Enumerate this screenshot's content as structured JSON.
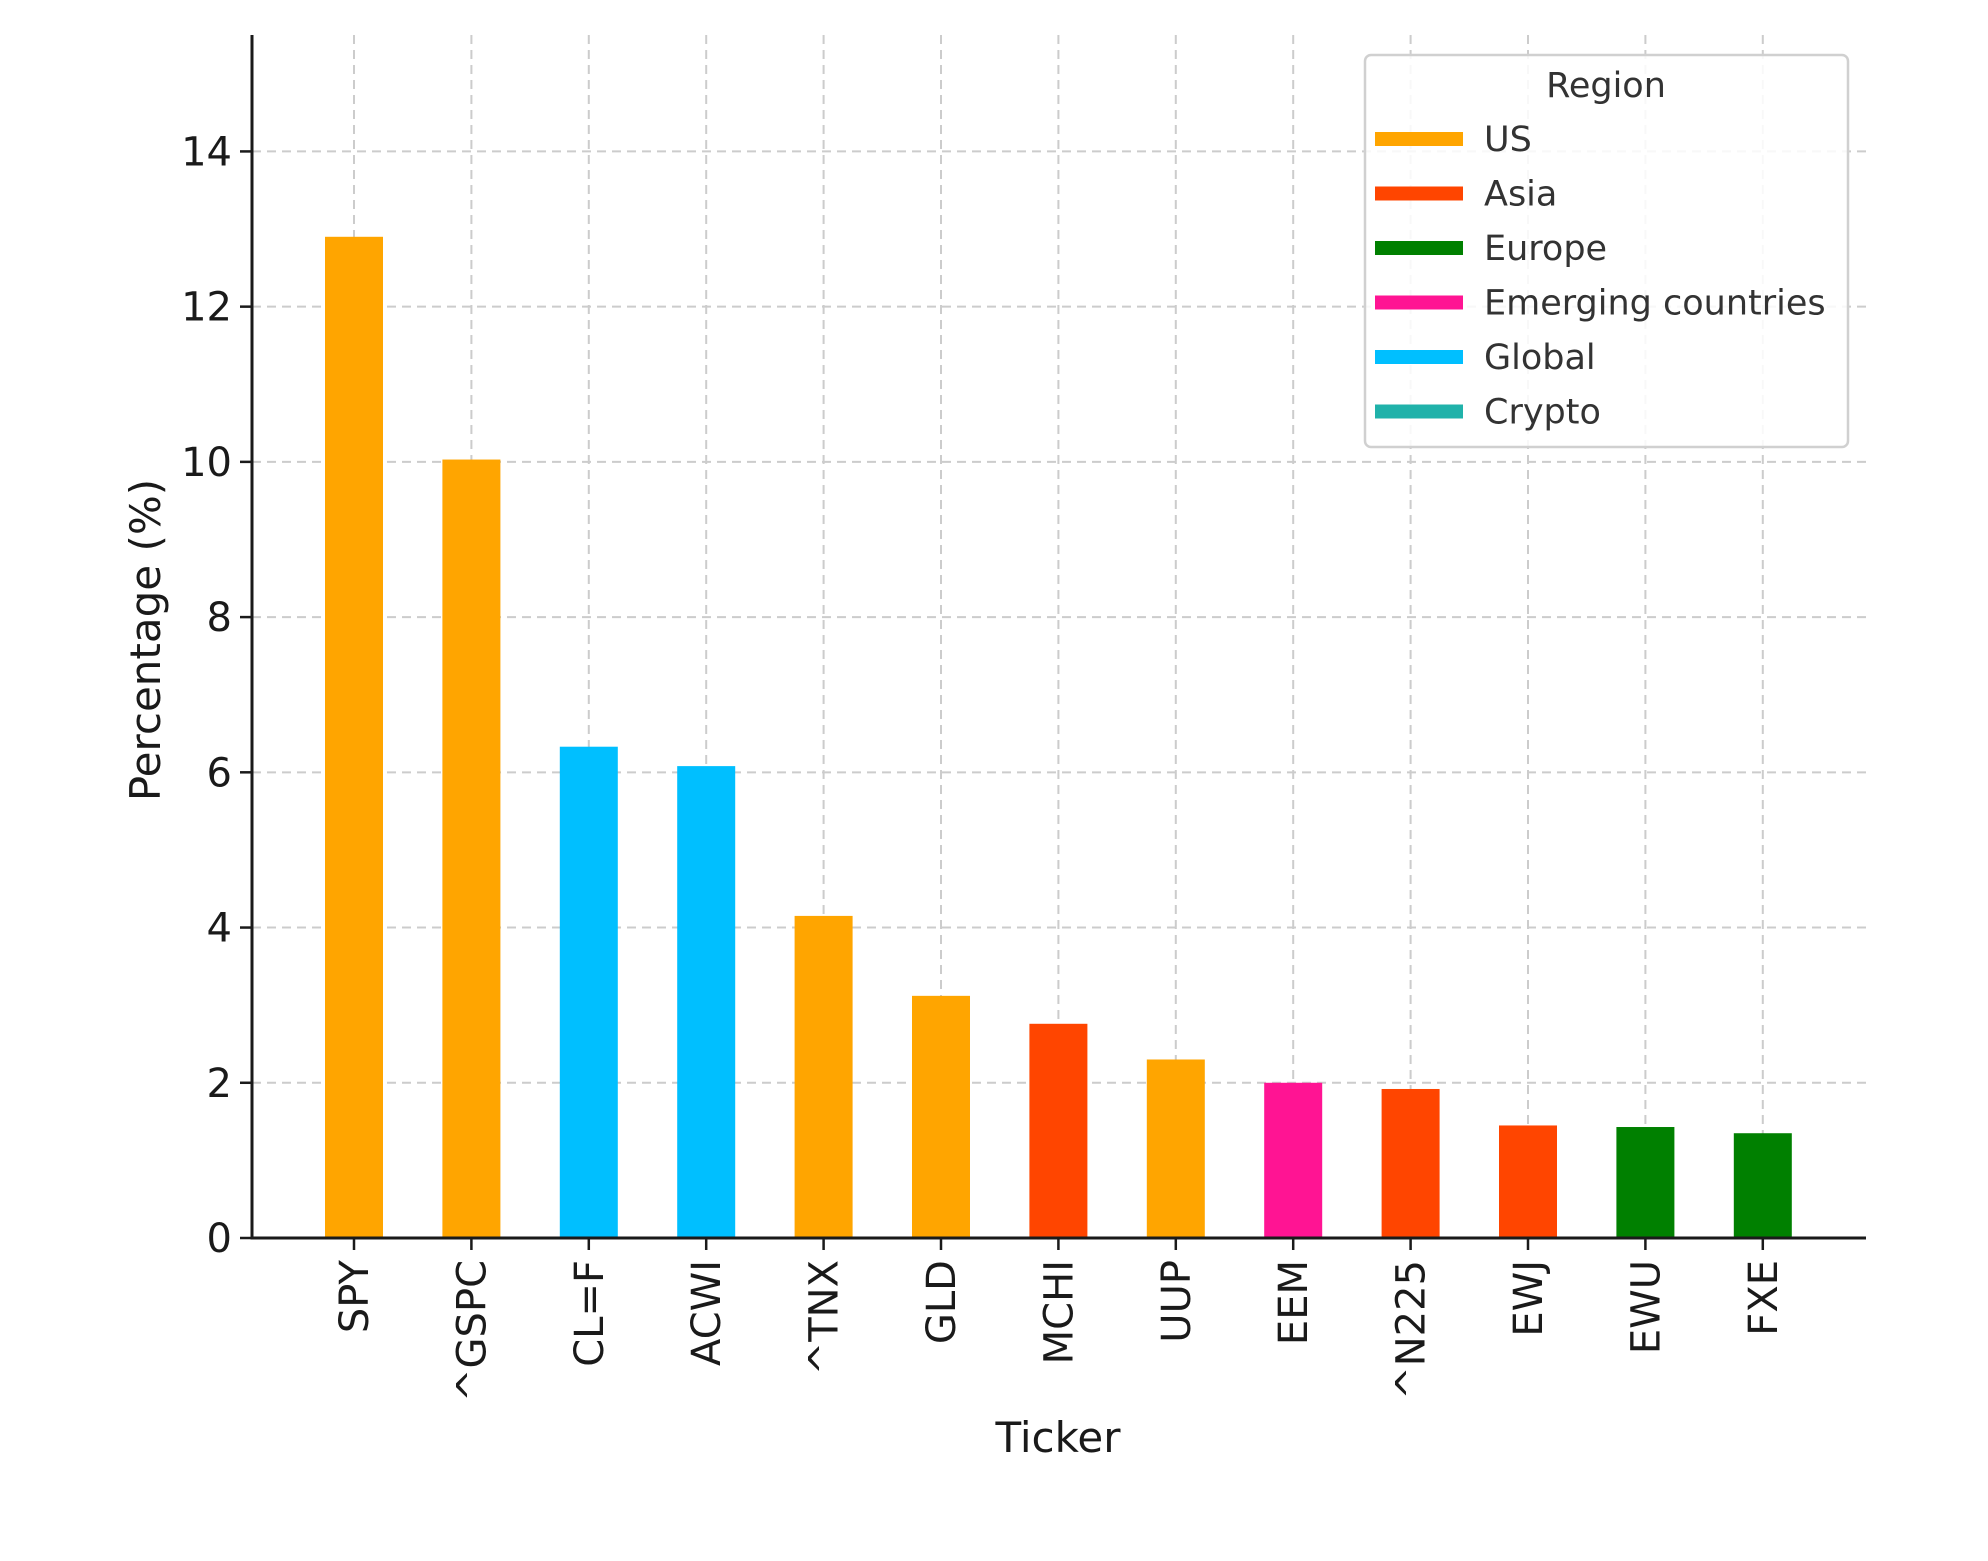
{
  "chart_data": {
    "type": "bar",
    "xlabel": "Ticker",
    "ylabel": "Percentage (%)",
    "ylim": [
      0,
      15.5
    ],
    "yticks": [
      0,
      2,
      4,
      6,
      8,
      10,
      12,
      14
    ],
    "grid": true,
    "legend": {
      "title": "Region",
      "placement": "top-right",
      "entries": [
        {
          "label": "US",
          "color": "#FFA500"
        },
        {
          "label": "Asia",
          "color": "#FF4500"
        },
        {
          "label": "Europe",
          "color": "#008000"
        },
        {
          "label": "Emerging countries",
          "color": "#FF1493"
        },
        {
          "label": "Global",
          "color": "#00BFFF"
        },
        {
          "label": "Crypto",
          "color": "#20B2AA"
        }
      ]
    },
    "categories": [
      "SPY",
      "^GSPC",
      "CL=F",
      "ACWI",
      "^TNX",
      "GLD",
      "MCHI",
      "UUP",
      "EEM",
      "^N225",
      "EWJ",
      "EWU",
      "FXE"
    ],
    "values": [
      12.9,
      10.03,
      6.33,
      6.08,
      4.15,
      3.12,
      2.76,
      2.3,
      2.0,
      1.92,
      1.45,
      1.43,
      1.35
    ],
    "regions": [
      "US",
      "US",
      "Global",
      "Global",
      "US",
      "US",
      "Asia",
      "US",
      "Emerging countries",
      "Asia",
      "Asia",
      "Europe",
      "Europe"
    ]
  }
}
